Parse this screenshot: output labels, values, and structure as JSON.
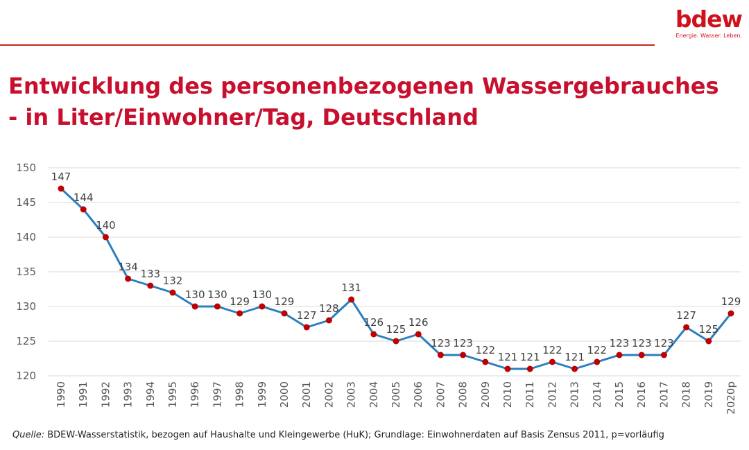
{
  "logo": {
    "word": "bdew",
    "tagline": "Energie. Wasser. Leben."
  },
  "title": {
    "line1": "Entwicklung des personenbezogenen Wassergebrauches",
    "line2": "- in Liter/Einwohner/Tag, Deutschland"
  },
  "source": {
    "label": "Quelle:",
    "text": " BDEW-Wasserstatistik, bezogen auf Haushalte und Kleingewerbe (HuK); Grundlage: Einwohnerdaten auf Basis Zensus 2011, p=vorläufig"
  },
  "colors": {
    "brand": "#c8102e",
    "line": "#2a7fc1",
    "marker": "#c00000",
    "grid": "#d9d9d9"
  },
  "chart_data": {
    "type": "line",
    "title": "",
    "xlabel": "",
    "ylabel": "",
    "categories": [
      "1990",
      "1991",
      "1992",
      "1993",
      "1994",
      "1995",
      "1996",
      "1997",
      "1998",
      "1999",
      "2000",
      "2001",
      "2002",
      "2003",
      "2004",
      "2005",
      "2006",
      "2007",
      "2008",
      "2009",
      "2010",
      "2011",
      "2012",
      "2013",
      "2014",
      "2015",
      "2016",
      "2017",
      "2018",
      "2019",
      "2020p"
    ],
    "series": [
      {
        "values": [
          147,
          144,
          140,
          134,
          133,
          132,
          130,
          130,
          129,
          130,
          129,
          127,
          128,
          131,
          126,
          125,
          126,
          123,
          123,
          122,
          121,
          121,
          122,
          121,
          122,
          123,
          123,
          123,
          127,
          125,
          129
        ]
      }
    ],
    "ylim": [
      120,
      150
    ],
    "yticks": [
      120,
      125,
      130,
      135,
      140,
      145,
      150
    ],
    "grid": true,
    "data_labels": true,
    "legend": "none"
  }
}
